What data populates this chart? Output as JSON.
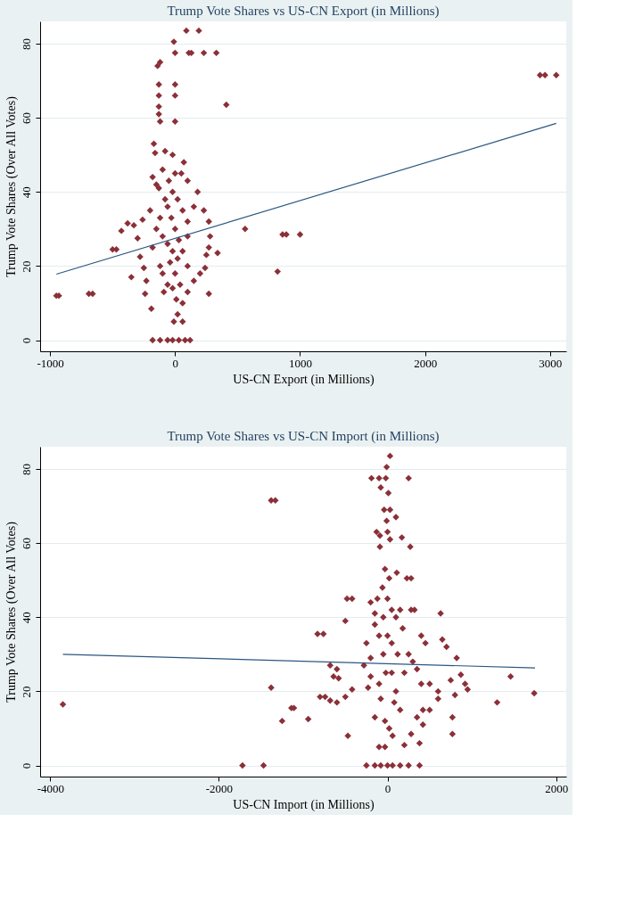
{
  "chart_data": [
    {
      "type": "scatter",
      "title": "Trump Vote Shares vs US-CN Export (in Millions)",
      "xlabel": "US-CN Export (in Millions)",
      "ylabel": "Trump Vote Shares (Over All Votes)",
      "xlim": [
        -1080,
        3130
      ],
      "ylim": [
        -3,
        86
      ],
      "xticks": [
        -1000,
        0,
        1000,
        2000,
        3000
      ],
      "yticks": [
        0,
        20,
        40,
        60,
        80
      ],
      "grid": "y",
      "series": [
        {
          "marker": "diamond",
          "color": "#8b3038",
          "x": [
            -950,
            -930,
            -690,
            -660,
            -500,
            -470,
            -430,
            -380,
            -330,
            -300,
            -350,
            -280,
            -260,
            -250,
            -230,
            -240,
            -190,
            -170,
            -160,
            -130,
            -140,
            -120,
            -130,
            -130,
            -130,
            -130,
            -120,
            -10,
            0,
            0,
            0,
            0,
            90,
            190,
            110,
            130,
            230,
            330,
            410,
            560,
            820,
            860,
            890,
            1000,
            2920,
            2960,
            3050,
            -180,
            -120,
            -60,
            -20,
            30,
            80,
            120,
            -10,
            60,
            20,
            -80,
            -20,
            70,
            -180,
            -150,
            -100,
            -80,
            -200,
            -150,
            -100,
            -180,
            -50,
            0,
            50,
            100,
            180,
            150,
            230,
            270,
            280,
            270,
            340,
            250,
            240,
            200,
            150,
            270,
            -60,
            -30,
            0,
            30,
            60,
            -40,
            0,
            40,
            -90,
            10,
            60,
            -20,
            20,
            60,
            100,
            100,
            -60,
            -20,
            20,
            100,
            -100,
            -60,
            -120,
            -120,
            -20,
            100
          ],
          "values": [
            12,
            12,
            12.5,
            12.5,
            24.5,
            24.5,
            29.5,
            31.5,
            31,
            27.5,
            17,
            22.5,
            32.5,
            19.5,
            16,
            12.5,
            8.5,
            53,
            50.5,
            41,
            74,
            75,
            69,
            66,
            63,
            61,
            59,
            80.5,
            77.5,
            69,
            66,
            59,
            83.5,
            83.5,
            77.5,
            77.5,
            77.5,
            77.5,
            63.5,
            30,
            18.5,
            28.5,
            28.5,
            28.5,
            71.5,
            71.5,
            71.5,
            0,
            0,
            0,
            0,
            0,
            0,
            0,
            5,
            5,
            7,
            51,
            50,
            48,
            44,
            42,
            46,
            38,
            35,
            30,
            28,
            25,
            43,
            45,
            45,
            43,
            40,
            36,
            35,
            32,
            28,
            25,
            23.5,
            23,
            19.5,
            18,
            16,
            12.5,
            36,
            33,
            30,
            27,
            24,
            21,
            18,
            15,
            13,
            11,
            10,
            40,
            38,
            35,
            32,
            28,
            26,
            24,
            22,
            20,
            18,
            15,
            20,
            33,
            14,
            13
          ]
        },
        {
          "type": "line",
          "color": "#2a5680",
          "line_style": "solid",
          "x": [
            -950,
            3050
          ],
          "values": [
            17.8,
            58.5
          ]
        }
      ]
    },
    {
      "type": "scatter",
      "title": "Trump Vote Shares vs US-CN Import (in Millions)",
      "xlabel": "US-CN Import (in Millions)",
      "ylabel": "Trump Vote Shares (Over All Votes)",
      "xlim": [
        -4120,
        2120
      ],
      "ylim": [
        -3,
        86
      ],
      "xticks": [
        -4000,
        -2000,
        0,
        2000
      ],
      "yticks": [
        0,
        20,
        40,
        60,
        80
      ],
      "grid": "y",
      "series": [
        {
          "marker": "diamond",
          "color": "#8b3038",
          "x": [
            -3850,
            -1380,
            -1330,
            -1380,
            -1250,
            -1140,
            -1110,
            -940,
            -830,
            -760,
            -800,
            -740,
            -680,
            -640,
            -600,
            -580,
            -680,
            -600,
            -500,
            -480,
            -420,
            -470,
            -500,
            -420,
            -1720,
            -1470,
            -250,
            -150,
            -80,
            0,
            60,
            150,
            250,
            380,
            -100,
            -30,
            200,
            380,
            280,
            -190,
            -100,
            -20,
            250,
            -10,
            30,
            -80,
            10,
            -40,
            30,
            -10,
            100,
            -130,
            -90,
            0,
            30,
            170,
            -90,
            270,
            -30,
            20,
            110,
            230,
            280,
            -60,
            -120,
            -200,
            -150,
            -250,
            -200,
            -280,
            -230,
            -150,
            -100,
            -50,
            0,
            50,
            100,
            150,
            280,
            320,
            -20,
            50,
            100,
            150,
            -80,
            -30,
            20,
            -150,
            60,
            180,
            250,
            300,
            350,
            400,
            450,
            400,
            500,
            420,
            500,
            420,
            350,
            600,
            600,
            650,
            700,
            630,
            750,
            800,
            820,
            870,
            920,
            950,
            770,
            770,
            1300,
            1460,
            1740,
            120,
            200,
            -100,
            0,
            50,
            -50,
            80,
            -200
          ],
          "values": [
            16.5,
            71.5,
            71.5,
            21,
            12,
            15.5,
            15.5,
            12.5,
            35.5,
            35.5,
            18.5,
            18.5,
            27,
            24,
            26,
            23.5,
            17.5,
            17,
            39,
            45,
            45,
            8,
            18.5,
            20.5,
            0,
            0,
            0,
            0,
            0,
            0,
            0,
            0,
            0,
            0,
            5,
            5,
            5.5,
            6,
            8.5,
            77.5,
            77.5,
            77.5,
            77.5,
            80.5,
            83.5,
            75,
            73.5,
            69,
            69,
            66,
            67,
            63,
            62,
            63,
            61,
            61.5,
            59,
            59,
            53,
            50.5,
            52,
            50.5,
            50.5,
            48,
            45,
            44,
            41,
            33,
            29,
            27,
            21,
            38,
            35,
            30,
            45,
            42,
            40,
            42,
            42,
            42,
            25,
            25,
            20,
            15,
            18,
            12,
            10,
            13,
            8,
            37,
            30,
            28,
            26,
            35,
            33,
            22,
            22,
            15,
            15,
            11,
            13,
            18,
            20,
            34,
            32,
            41,
            23,
            19,
            29,
            24.5,
            22,
            20.5,
            13,
            8.5,
            17,
            24,
            19.5,
            30,
            25,
            22,
            35,
            33,
            40,
            17,
            24
          ]
        },
        {
          "type": "line",
          "color": "#2a5680",
          "line_style": "solid",
          "x": [
            -3850,
            1750
          ],
          "values": [
            30,
            26.3
          ]
        }
      ]
    }
  ]
}
